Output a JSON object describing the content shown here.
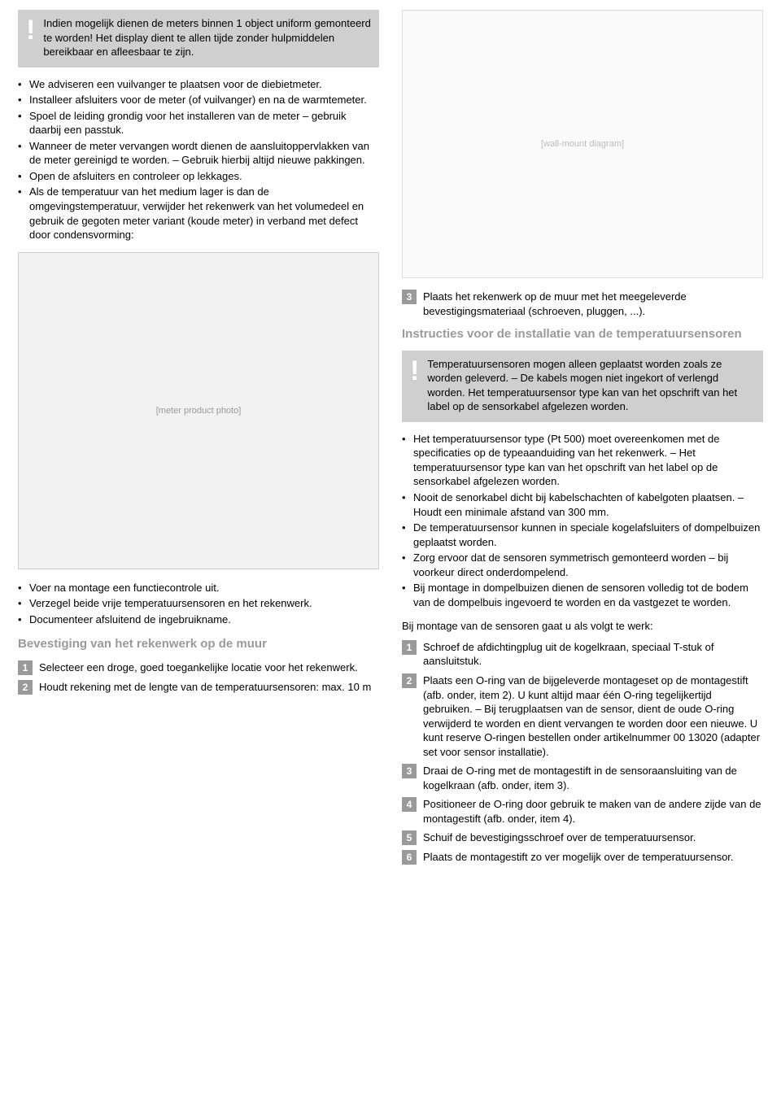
{
  "left": {
    "warning": "Indien mogelijk dienen de meters binnen 1 object uniform gemonteerd te worden! Het display dient te allen tijde zonder hulpmiddelen bereikbaar en afleesbaar te zijn.",
    "bullets1": [
      "We adviseren een vuilvanger te plaatsen voor de diebietmeter.",
      "Installeer afsluiters voor de meter (of vuilvanger) en na de warmtemeter.",
      "Spoel de leiding grondig voor het installeren van de meter – gebruik daarbij een passtuk.",
      "Wanneer de meter vervangen wordt dienen de aansluitoppervlakken van de meter gereinigd te worden. – Gebruik hierbij altijd nieuwe pakkingen.",
      "Open de afsluiters en controleer op lekkages.",
      "Als de temperatuur van het medium lager is dan de omgevingstemperatuur, verwijder het rekenwerk van het volumedeel en gebruik de gegoten meter variant (koude meter) in verband met defect door condensvorming:"
    ],
    "image_alt": "[meter product photo]",
    "bullets2": [
      "Voer na montage een functiecontrole uit.",
      "Verzegel beide vrije temperatuursensoren en het rekenwerk.",
      "Documenteer afsluitend de ingebruikname."
    ],
    "heading": "Bevestiging van het rekenwerk op de muur",
    "steps": [
      {
        "n": "1",
        "t": "Selecteer een droge, goed toegankelijke locatie voor het rekenwerk."
      },
      {
        "n": "2",
        "t": "Houdt rekening met de lengte van de temperatuursensoren: max. 10 m"
      }
    ]
  },
  "right": {
    "diagram_alt": "[wall-mount diagram]",
    "step3": {
      "n": "3",
      "t": "Plaats het rekenwerk op de muur met het meegeleverde bevestigingsmateriaal (schroeven, pluggen, ...)."
    },
    "heading": "Instructies voor de installatie van de temperatuursensoren",
    "warning": "Temperatuursensoren mogen alleen geplaatst worden zoals ze worden geleverd. – De kabels mogen niet ingekort of verlengd worden.\nHet temperatuursensor type kan van het opschrift van het label op de sensorkabel afgelezen worden.",
    "bullets": [
      "Het temperatuursensor type (Pt 500) moet overeenkomen met de specificaties op de typeaanduiding van het rekenwerk. – Het temperatuursensor type kan van het opschrift van het label op de sensorkabel afgelezen worden.",
      "Nooit de senorkabel dicht bij kabelschachten of kabelgoten plaatsen. – Houdt een minimale afstand van 300 mm.",
      "De temperatuursensor kunnen in speciale kogelafsluiters of dompelbuizen geplaatst worden.",
      "Zorg ervoor dat de sensoren symmetrisch gemonteerd worden – bij voorkeur direct onderdompelend.",
      "Bij montage in dompelbuizen dienen de sensoren volledig tot de bodem van de dompelbuis ingevoerd te worden en da vastgezet te worden."
    ],
    "intro": "Bij montage van de sensoren gaat u als volgt te werk:",
    "steps": [
      {
        "n": "1",
        "t": "Schroef de afdichtingplug uit de kogelkraan, speciaal T-stuk of aansluitstuk."
      },
      {
        "n": "2",
        "t": "Plaats een O-ring van de bijgeleverde montageset op de montagestift (afb. onder, item 2).\nU kunt altijd maar één O-ring tegelijkertijd gebruiken. – Bij terugplaatsen van de sensor, dient de oude O-ring verwijderd te worden en dient vervangen te worden door een nieuwe.\nU kunt reserve O-ringen bestellen onder artikelnummer 00 13020 (adapter set voor sensor installatie)."
      },
      {
        "n": "3",
        "t": "Draai de O-ring met de montagestift in de sensoraansluiting van de kogelkraan (afb. onder, item 3)."
      },
      {
        "n": "4",
        "t": "Positioneer de O-ring door gebruik te maken van de andere zijde van de montagestift (afb. onder, item 4)."
      },
      {
        "n": "5",
        "t": "Schuif de bevestigingsschroef over de temperatuursensor."
      },
      {
        "n": "6",
        "t": "Plaats de montagestift zo ver mogelijk over de temperatuursensor."
      }
    ]
  }
}
